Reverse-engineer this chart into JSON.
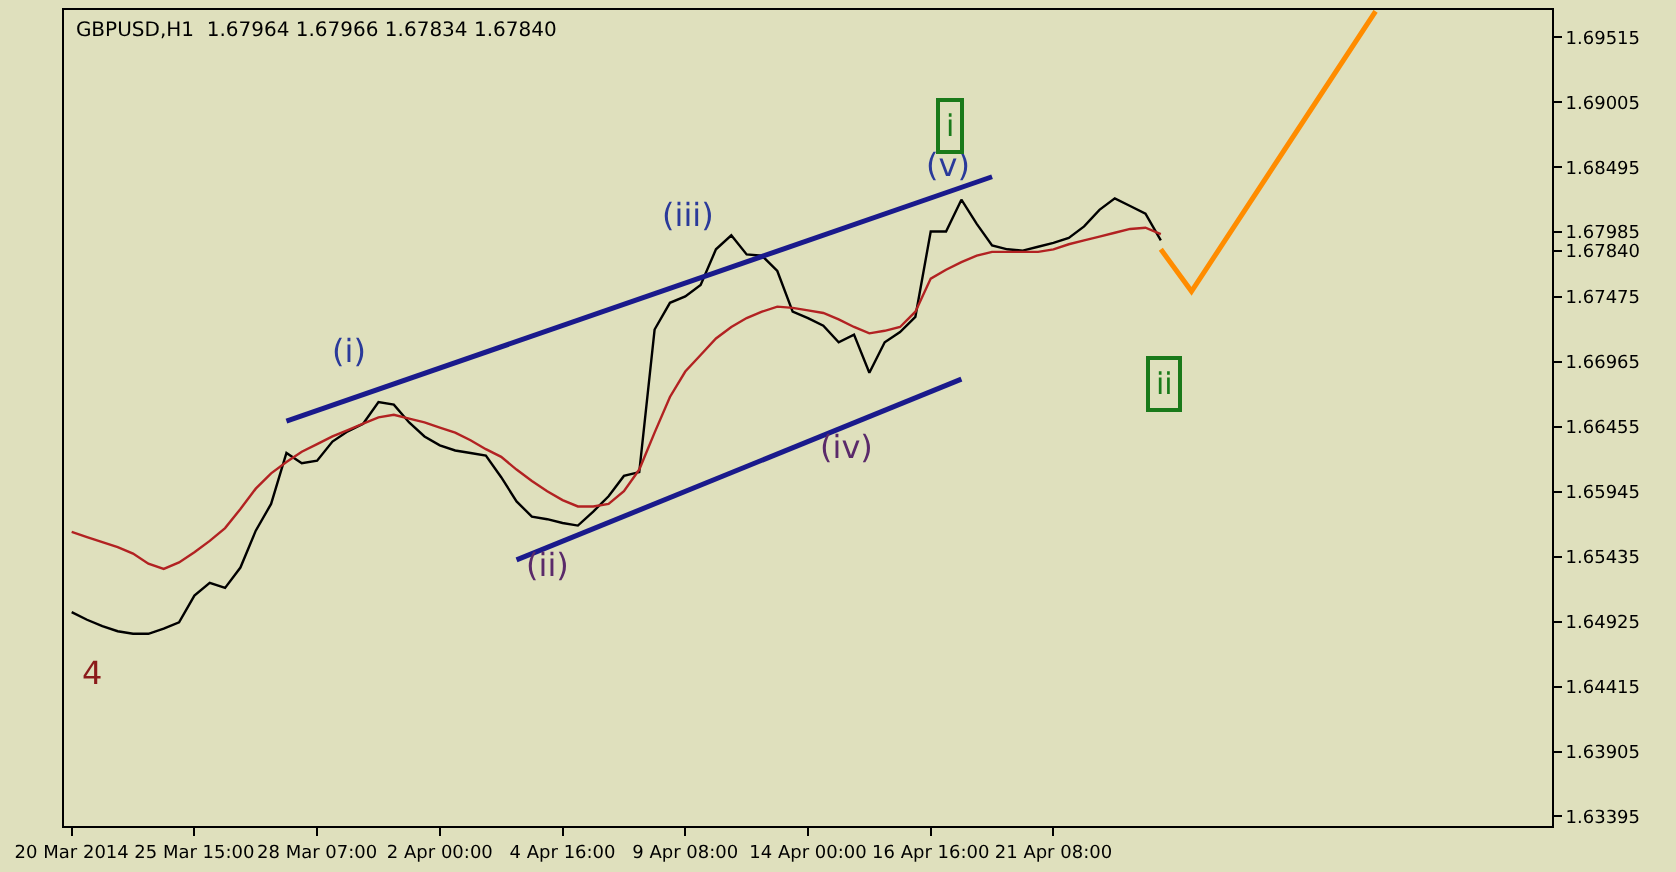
{
  "chart_data": {
    "type": "line",
    "title": "GBPUSD,H1  1.67964 1.67966 1.67834 1.67840",
    "categories": [
      "20 Mar 2014",
      null,
      null,
      null,
      null,
      null,
      null,
      null,
      "25 Mar 15:00",
      null,
      null,
      null,
      null,
      null,
      null,
      null,
      "28 Mar 07:00",
      null,
      null,
      null,
      null,
      null,
      null,
      null,
      "2 Apr 00:00",
      null,
      null,
      null,
      null,
      null,
      null,
      null,
      "4 Apr 16:00",
      null,
      null,
      null,
      null,
      null,
      null,
      null,
      "9 Apr 08:00",
      null,
      null,
      null,
      null,
      null,
      null,
      null,
      "14 Apr 00:00",
      null,
      null,
      null,
      null,
      null,
      null,
      null,
      "16 Apr 16:00",
      null,
      null,
      null,
      null,
      null,
      null,
      null,
      "21 Apr 08:00",
      null,
      null,
      null,
      null,
      null,
      null,
      null,
      null,
      null,
      null,
      null,
      null,
      null,
      null,
      null,
      null,
      null,
      null,
      null,
      null,
      null,
      null,
      null,
      null,
      null,
      null,
      null,
      null,
      null,
      null,
      null,
      null
    ],
    "ylim": [
      1.6332,
      1.6973
    ],
    "yticks": [
      1.69515,
      1.69005,
      1.68495,
      1.67985,
      {
        "value": 1.6784,
        "label": "1.67840"
      },
      1.67475,
      1.66965,
      1.66455,
      1.65945,
      1.65435,
      1.64925,
      1.64415,
      1.63905,
      1.63395
    ],
    "grid": false,
    "series": [
      {
        "color": "#000000",
        "values": [
          1.65,
          1.6494,
          1.6489,
          1.6485,
          1.6483,
          1.6483,
          1.6487,
          1.6492,
          1.6513,
          1.6523,
          1.6519,
          1.6535,
          1.6564,
          1.6585,
          1.6625,
          1.6617,
          1.6619,
          1.6634,
          1.6642,
          1.6648,
          1.6665,
          1.6663,
          1.6649,
          1.6638,
          1.6631,
          1.6627,
          1.6625,
          1.6623,
          1.6606,
          1.6587,
          1.6575,
          1.6573,
          1.657,
          1.6568,
          1.6579,
          1.6591,
          1.6607,
          1.661,
          1.6722,
          1.6743,
          1.6748,
          1.6757,
          1.6785,
          1.6796,
          1.6781,
          1.678,
          1.6768,
          1.6736,
          1.6731,
          1.6725,
          1.6712,
          1.6718,
          1.6688,
          1.6712,
          1.672,
          1.6732,
          1.6799,
          1.6799,
          1.6824,
          1.6805,
          1.6788,
          1.6785,
          1.6784,
          1.6787,
          1.679,
          1.6794,
          1.6803,
          1.6816,
          1.6825,
          1.6819,
          1.6813,
          1.6792,
          null,
          null,
          null,
          null,
          null,
          null,
          null,
          null,
          null,
          null,
          null,
          null,
          null,
          null,
          null,
          null,
          null,
          null,
          null,
          null,
          null,
          null,
          null,
          null,
          null
        ]
      },
      {
        "color": "#b22222",
        "values": [
          1.6563,
          1.6559,
          1.6555,
          1.6551,
          1.6546,
          1.6538,
          1.6534,
          1.6539,
          1.6547,
          1.6556,
          1.6566,
          1.6581,
          1.6597,
          1.6609,
          1.6618,
          1.6626,
          1.6632,
          1.6638,
          1.6643,
          1.6648,
          1.6653,
          1.6655,
          1.6652,
          1.6649,
          1.6645,
          1.6641,
          1.6635,
          1.6628,
          1.6622,
          1.6612,
          1.6603,
          1.6595,
          1.6588,
          1.6583,
          1.6583,
          1.6585,
          1.6595,
          1.6612,
          1.6641,
          1.6669,
          1.6689,
          1.6702,
          1.6715,
          1.6724,
          1.6731,
          1.6736,
          1.674,
          1.6739,
          1.6737,
          1.6735,
          1.673,
          1.6724,
          1.6719,
          1.6721,
          1.6724,
          1.6736,
          1.6762,
          1.6769,
          1.6775,
          1.678,
          1.6783,
          1.6783,
          1.6783,
          1.6783,
          1.6785,
          1.6789,
          1.6792,
          1.6795,
          1.6798,
          1.6801,
          1.6802,
          1.6797,
          null,
          null,
          null,
          null,
          null,
          null,
          null,
          null,
          null,
          null,
          null,
          null,
          null,
          null,
          null,
          null,
          null,
          null,
          null,
          null,
          null,
          null,
          null,
          null,
          null
        ]
      },
      {
        "color": "#1a1a8c",
        "values": [
          null,
          null,
          null,
          null,
          null,
          null,
          null,
          null,
          null,
          null,
          null,
          null,
          null,
          null,
          1.665,
          null,
          null,
          null,
          null,
          null,
          null,
          null,
          null,
          null,
          null,
          null,
          null,
          null,
          null,
          null,
          null,
          null,
          null,
          null,
          null,
          null,
          null,
          null,
          null,
          null,
          null,
          null,
          null,
          null,
          null,
          null,
          null,
          null,
          null,
          null,
          null,
          null,
          null,
          null,
          null,
          null,
          null,
          null,
          null,
          null,
          1.6842,
          null,
          null,
          null,
          null,
          null,
          null,
          null,
          null,
          null,
          null,
          null,
          null,
          null,
          null,
          null,
          null,
          null,
          null,
          null,
          null,
          null,
          null,
          null,
          null,
          null,
          null,
          null,
          null,
          null,
          null,
          null,
          null,
          null,
          null,
          null,
          null
        ]
      },
      {
        "color": "#1a1a8c",
        "values": [
          null,
          null,
          null,
          null,
          null,
          null,
          null,
          null,
          null,
          null,
          null,
          null,
          null,
          null,
          null,
          null,
          null,
          null,
          null,
          null,
          null,
          null,
          null,
          null,
          null,
          null,
          null,
          null,
          null,
          1.6541,
          null,
          null,
          null,
          null,
          null,
          null,
          null,
          null,
          null,
          null,
          null,
          null,
          null,
          null,
          null,
          null,
          null,
          null,
          null,
          null,
          null,
          null,
          null,
          null,
          null,
          null,
          null,
          null,
          1.6683,
          null,
          null,
          null,
          null,
          null,
          null,
          null,
          null,
          null,
          null,
          null,
          null,
          null,
          null,
          null,
          null,
          null,
          null,
          null,
          null,
          null,
          null,
          null,
          null,
          null,
          null,
          null,
          null,
          null,
          null,
          null,
          null,
          null,
          null,
          null,
          null,
          null,
          null
        ]
      },
      {
        "color": "#ff8c00",
        "values": [
          null,
          null,
          null,
          null,
          null,
          null,
          null,
          null,
          null,
          null,
          null,
          null,
          null,
          null,
          null,
          null,
          null,
          null,
          null,
          null,
          null,
          null,
          null,
          null,
          null,
          null,
          null,
          null,
          null,
          null,
          null,
          null,
          null,
          null,
          null,
          null,
          null,
          null,
          null,
          null,
          null,
          null,
          null,
          null,
          null,
          null,
          null,
          null,
          null,
          null,
          null,
          null,
          null,
          null,
          null,
          null,
          null,
          null,
          null,
          null,
          null,
          null,
          null,
          null,
          null,
          null,
          null,
          null,
          null,
          null,
          null,
          1.6785,
          null,
          1.6752,
          null,
          null,
          null,
          null,
          null,
          null,
          null,
          null,
          null,
          null,
          null,
          1.6972,
          null,
          null,
          null,
          null,
          null,
          null,
          null,
          null,
          null,
          null,
          null
        ]
      }
    ],
    "annotations": [
      "(i)",
      "(ii)",
      "(iii)",
      "(iv)",
      "(v)",
      "i",
      "ii",
      "4"
    ]
  }
}
